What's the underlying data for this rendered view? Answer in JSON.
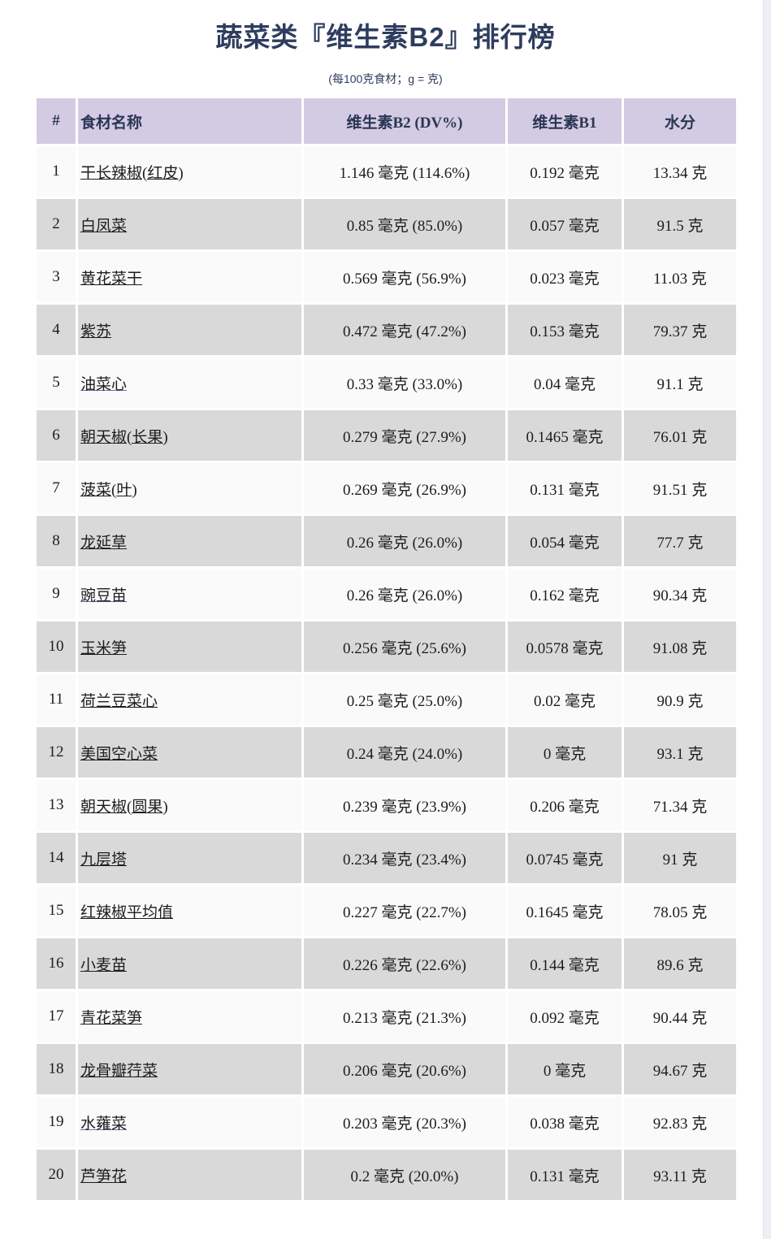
{
  "chart_data": {
    "type": "table",
    "title": "蔬菜类『维生素B2』排行榜",
    "subtitle": "(每100克食材；g = 克)",
    "columns": [
      "#",
      "食材名称",
      "维生素B2 (DV%)",
      "维生素B1",
      "水分"
    ],
    "rows": [
      [
        "1",
        "干长辣椒(红皮)",
        "1.146 毫克 (114.6%)",
        "0.192 毫克",
        "13.34 克"
      ],
      [
        "2",
        "白凤菜",
        "0.85 毫克 (85.0%)",
        "0.057 毫克",
        "91.5 克"
      ],
      [
        "3",
        "黄花菜干",
        "0.569 毫克 (56.9%)",
        "0.023 毫克",
        "11.03 克"
      ],
      [
        "4",
        "紫苏",
        "0.472 毫克 (47.2%)",
        "0.153 毫克",
        "79.37 克"
      ],
      [
        "5",
        "油菜心",
        "0.33 毫克 (33.0%)",
        "0.04 毫克",
        "91.1 克"
      ],
      [
        "6",
        "朝天椒(长果)",
        "0.279 毫克 (27.9%)",
        "0.1465 毫克",
        "76.01 克"
      ],
      [
        "7",
        "菠菜(叶)",
        "0.269 毫克 (26.9%)",
        "0.131 毫克",
        "91.51 克"
      ],
      [
        "8",
        "龙延草",
        "0.26 毫克 (26.0%)",
        "0.054 毫克",
        "77.7 克"
      ],
      [
        "9",
        "豌豆苗",
        "0.26 毫克 (26.0%)",
        "0.162 毫克",
        "90.34 克"
      ],
      [
        "10",
        "玉米笋",
        "0.256 毫克 (25.6%)",
        "0.0578 毫克",
        "91.08 克"
      ],
      [
        "11",
        "荷兰豆菜心",
        "0.25 毫克 (25.0%)",
        "0.02 毫克",
        "90.9 克"
      ],
      [
        "12",
        "美国空心菜",
        "0.24 毫克 (24.0%)",
        "0 毫克",
        "93.1 克"
      ],
      [
        "13",
        "朝天椒(圆果)",
        "0.239 毫克 (23.9%)",
        "0.206 毫克",
        "71.34 克"
      ],
      [
        "14",
        "九层塔",
        "0.234 毫克 (23.4%)",
        "0.0745 毫克",
        "91 克"
      ],
      [
        "15",
        "红辣椒平均值",
        "0.227 毫克 (22.7%)",
        "0.1645 毫克",
        "78.05 克"
      ],
      [
        "16",
        "小麦苗",
        "0.226 毫克 (22.6%)",
        "0.144 毫克",
        "89.6 克"
      ],
      [
        "17",
        "青花菜笋",
        "0.213 毫克 (21.3%)",
        "0.092 毫克",
        "90.44 克"
      ],
      [
        "18",
        "龙骨瓣荇菜",
        "0.206 毫克 (20.6%)",
        "0 毫克",
        "94.67 克"
      ],
      [
        "19",
        "水蕹菜",
        "0.203 毫克 (20.3%)",
        "0.038 毫克",
        "92.83 克"
      ],
      [
        "20",
        "芦笋花",
        "0.2 毫克 (20.0%)",
        "0.131 毫克",
        "93.11 克"
      ]
    ],
    "visited_link_ranks": [
      5,
      9,
      19
    ],
    "layout_hints": {
      "striped": true,
      "header_position": "top",
      "cell_spacing_gaps": true
    }
  },
  "colors": {
    "header_bg": "#d3cbe3",
    "header_text": "#2b3654",
    "row_even_bg": "#d9d9d9",
    "row_odd_bg": "#fafafa",
    "title_text": "#2e3d5e",
    "body_text": "#1d1d1d",
    "visited_underline": "#6674b8",
    "scrollbar_track": "#edeff5"
  }
}
